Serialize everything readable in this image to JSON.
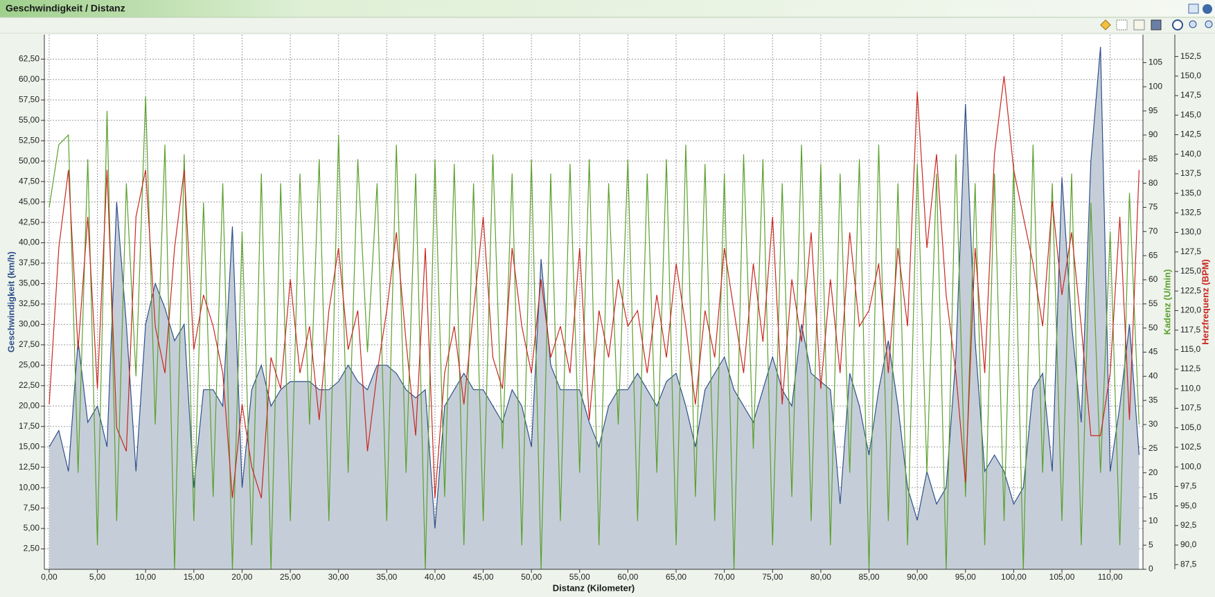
{
  "chart_data": {
    "type": "line",
    "title": "Geschwindigkeit / Distanz",
    "x_label": "Distanz (Kilometer)",
    "y_label": "Geschwindigkeit (km/h)",
    "y2_label": "Kadenz (U/min)",
    "y3_label": "Herzfrequenz (BPM)",
    "grid": true,
    "xlim": [
      -0.5,
      113.4
    ],
    "ylim": [
      0,
      65.5
    ],
    "y2lim": [
      0,
      110.8
    ],
    "y3lim": [
      86.9,
      155.3
    ],
    "xticks": [
      {
        "value": 0,
        "label": "0,00"
      },
      {
        "value": 5,
        "label": "5,00"
      },
      {
        "value": 10,
        "label": "10,00"
      },
      {
        "value": 15,
        "label": "15,00"
      },
      {
        "value": 20,
        "label": "20,00"
      },
      {
        "value": 25,
        "label": "25,00"
      },
      {
        "value": 30,
        "label": "30,00"
      },
      {
        "value": 35,
        "label": "35,00"
      },
      {
        "value": 40,
        "label": "40,00"
      },
      {
        "value": 45,
        "label": "45,00"
      },
      {
        "value": 50,
        "label": "50,00"
      },
      {
        "value": 55,
        "label": "55,00"
      },
      {
        "value": 60,
        "label": "60,00"
      },
      {
        "value": 65,
        "label": "65,00"
      },
      {
        "value": 70,
        "label": "70,00"
      },
      {
        "value": 75,
        "label": "75,00"
      },
      {
        "value": 80,
        "label": "80,00"
      },
      {
        "value": 85,
        "label": "85,00"
      },
      {
        "value": 90,
        "label": "90,00"
      },
      {
        "value": 95,
        "label": "95,00"
      },
      {
        "value": 100,
        "label": "100,00"
      },
      {
        "value": 105,
        "label": "105,00"
      },
      {
        "value": 110,
        "label": "110,00"
      }
    ],
    "yticks": [
      {
        "value": 2.5,
        "label": "2,50"
      },
      {
        "value": 5,
        "label": "5,00"
      },
      {
        "value": 7.5,
        "label": "7,50"
      },
      {
        "value": 10,
        "label": "10,00"
      },
      {
        "value": 12.5,
        "label": "12,50"
      },
      {
        "value": 15,
        "label": "15,00"
      },
      {
        "value": 17.5,
        "label": "17,50"
      },
      {
        "value": 20,
        "label": "20,00"
      },
      {
        "value": 22.5,
        "label": "22,50"
      },
      {
        "value": 25,
        "label": "25,00"
      },
      {
        "value": 27.5,
        "label": "27,50"
      },
      {
        "value": 30,
        "label": "30,00"
      },
      {
        "value": 32.5,
        "label": "32,50"
      },
      {
        "value": 35,
        "label": "35,00"
      },
      {
        "value": 37.5,
        "label": "37,50"
      },
      {
        "value": 40,
        "label": "40,00"
      },
      {
        "value": 42.5,
        "label": "42,50"
      },
      {
        "value": 45,
        "label": "45,00"
      },
      {
        "value": 47.5,
        "label": "47,50"
      },
      {
        "value": 50,
        "label": "50,00"
      },
      {
        "value": 52.5,
        "label": "52,50"
      },
      {
        "value": 55,
        "label": "55,00"
      },
      {
        "value": 57.5,
        "label": "57,50"
      },
      {
        "value": 60,
        "label": "60,00"
      },
      {
        "value": 62.5,
        "label": "62,50"
      }
    ],
    "y2ticks": [
      0,
      5,
      10,
      15,
      20,
      25,
      30,
      35,
      40,
      45,
      50,
      55,
      60,
      65,
      70,
      75,
      80,
      85,
      90,
      95,
      100,
      105
    ],
    "y3ticks": [
      {
        "value": 87.5,
        "label": "87,5"
      },
      {
        "value": 90,
        "label": "90,0"
      },
      {
        "value": 92.5,
        "label": "92,5"
      },
      {
        "value": 95,
        "label": "95,0"
      },
      {
        "value": 97.5,
        "label": "97,5"
      },
      {
        "value": 100,
        "label": "100,0"
      },
      {
        "value": 102.5,
        "label": "102,5"
      },
      {
        "value": 105,
        "label": "105,0"
      },
      {
        "value": 107.5,
        "label": "107,5"
      },
      {
        "value": 110,
        "label": "110,0"
      },
      {
        "value": 112.5,
        "label": "112,5"
      },
      {
        "value": 115,
        "label": "115,0"
      },
      {
        "value": 117.5,
        "label": "117,5"
      },
      {
        "value": 120,
        "label": "120,0"
      },
      {
        "value": 122.5,
        "label": "122,5"
      },
      {
        "value": 125,
        "label": "125,0"
      },
      {
        "value": 127.5,
        "label": "127,5"
      },
      {
        "value": 130,
        "label": "130,0"
      },
      {
        "value": 132.5,
        "label": "132,5"
      },
      {
        "value": 135,
        "label": "135,0"
      },
      {
        "value": 137.5,
        "label": "137,5"
      },
      {
        "value": 140,
        "label": "140,0"
      },
      {
        "value": 142.5,
        "label": "142,5"
      },
      {
        "value": 145,
        "label": "145,0"
      },
      {
        "value": 147.5,
        "label": "147,5"
      },
      {
        "value": 150,
        "label": "150,0"
      },
      {
        "value": 152.5,
        "label": "152,5"
      }
    ],
    "x": [
      0,
      1,
      2,
      3,
      4,
      5,
      6,
      7,
      8,
      9,
      10,
      11,
      12,
      13,
      14,
      15,
      16,
      17,
      18,
      19,
      20,
      21,
      22,
      23,
      24,
      25,
      26,
      27,
      28,
      29,
      30,
      31,
      32,
      33,
      34,
      35,
      36,
      37,
      38,
      39,
      40,
      41,
      42,
      43,
      44,
      45,
      46,
      47,
      48,
      49,
      50,
      51,
      52,
      53,
      54,
      55,
      56,
      57,
      58,
      59,
      60,
      61,
      62,
      63,
      64,
      65,
      66,
      67,
      68,
      69,
      70,
      71,
      72,
      73,
      74,
      75,
      76,
      77,
      78,
      79,
      80,
      81,
      82,
      83,
      84,
      85,
      86,
      87,
      88,
      89,
      90,
      91,
      92,
      93,
      94,
      95,
      96,
      97,
      98,
      99,
      100,
      101,
      102,
      103,
      104,
      105,
      106,
      107,
      108,
      109,
      110,
      111,
      112,
      113
    ],
    "series": [
      {
        "color": "#2d4f8a",
        "fill": "#c5ced8",
        "axis": "y",
        "style": "area",
        "values": [
          15,
          17,
          12,
          28,
          18,
          20,
          15,
          45,
          30,
          12,
          30,
          35,
          32,
          28,
          30,
          10,
          22,
          22,
          20,
          42,
          10,
          22,
          25,
          20,
          22,
          23,
          23,
          23,
          22,
          22,
          23,
          25,
          23,
          22,
          25,
          25,
          24,
          22,
          21,
          22,
          5,
          20,
          22,
          24,
          22,
          22,
          20,
          18,
          22,
          20,
          15,
          38,
          25,
          22,
          22,
          22,
          18,
          15,
          20,
          22,
          22,
          24,
          22,
          20,
          23,
          24,
          20,
          15,
          22,
          24,
          26,
          22,
          20,
          18,
          22,
          26,
          22,
          20,
          30,
          24,
          23,
          22,
          8,
          24,
          20,
          14,
          22,
          28,
          20,
          10,
          6,
          12,
          8,
          10,
          26,
          57,
          28,
          12,
          14,
          12,
          8,
          10,
          22,
          24,
          12,
          48,
          30,
          18,
          50,
          64,
          12,
          20,
          30,
          14
        ]
      },
      {
        "color": "#5aa02c",
        "axis": "y2",
        "style": "line",
        "values": [
          75,
          88,
          90,
          20,
          85,
          5,
          95,
          10,
          80,
          40,
          98,
          30,
          88,
          0,
          86,
          10,
          76,
          15,
          80,
          0,
          70,
          5,
          82,
          0,
          80,
          10,
          82,
          30,
          85,
          10,
          90,
          20,
          85,
          45,
          80,
          10,
          88,
          20,
          82,
          0,
          85,
          15,
          84,
          5,
          80,
          10,
          86,
          25,
          82,
          5,
          85,
          0,
          82,
          10,
          84,
          20,
          85,
          5,
          80,
          30,
          85,
          10,
          82,
          20,
          85,
          5,
          88,
          15,
          84,
          10,
          82,
          0,
          86,
          25,
          85,
          5,
          80,
          15,
          88,
          10,
          84,
          5,
          82,
          20,
          85,
          0,
          88,
          10,
          80,
          5,
          84,
          20,
          82,
          0,
          86,
          15,
          80,
          5,
          82,
          10,
          84,
          0,
          88,
          20,
          80,
          10,
          82,
          5,
          76,
          20,
          70,
          5,
          78,
          30
        ]
      },
      {
        "color": "#c8261e",
        "axis": "y3",
        "style": "line",
        "values": [
          108,
          128,
          138,
          115,
          132,
          110,
          138,
          105,
          102,
          132,
          138,
          118,
          112,
          128,
          138,
          115,
          122,
          118,
          112,
          96,
          108,
          100,
          96,
          114,
          110,
          124,
          112,
          118,
          106,
          120,
          128,
          115,
          120,
          102,
          112,
          120,
          130,
          116,
          104,
          128,
          96,
          112,
          118,
          108,
          120,
          132,
          114,
          110,
          128,
          118,
          112,
          124,
          114,
          118,
          112,
          128,
          106,
          120,
          114,
          124,
          118,
          120,
          112,
          122,
          114,
          126,
          118,
          108,
          120,
          114,
          128,
          120,
          112,
          126,
          116,
          132,
          108,
          124,
          116,
          130,
          110,
          124,
          112,
          130,
          118,
          120,
          126,
          112,
          128,
          118,
          148,
          128,
          140,
          122,
          112,
          98,
          128,
          112,
          140,
          150,
          138,
          132,
          126,
          118,
          134,
          122,
          130,
          118,
          104,
          104,
          112,
          132,
          106,
          138
        ]
      }
    ]
  }
}
